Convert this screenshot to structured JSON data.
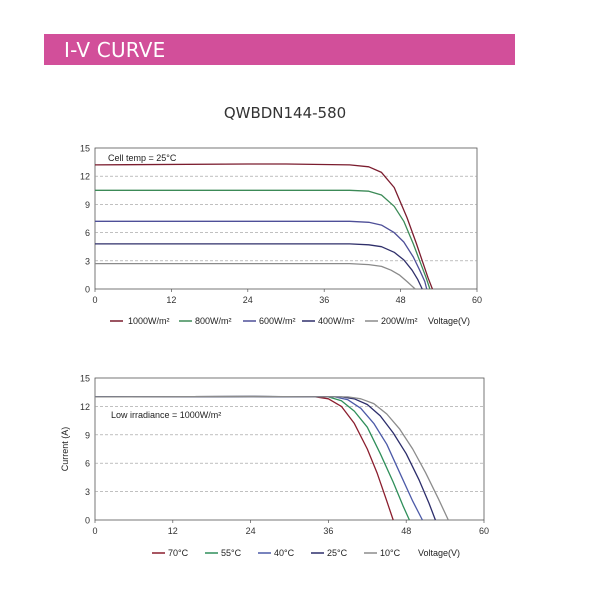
{
  "header": {
    "title": "I-V CURVE"
  },
  "model": "QWBDN144-580",
  "colors": {
    "banner": "#d24f9a",
    "irr_1000": "#7b1c2e",
    "irr_800": "#3c8a57",
    "irr_600": "#4e4f98",
    "irr_400": "#2f2f6a",
    "irr_200": "#8a8a8a",
    "t70": "#8b1e2e",
    "t55": "#2f8f5a",
    "t40": "#4c5aa8",
    "t25": "#2c2d6b",
    "t10": "#8c8c8c"
  },
  "chart_data": [
    {
      "type": "line",
      "annotation": "Cell temp = 25°C",
      "xlabel": "Voltage(V)",
      "ylabel": "",
      "xlim": [
        0,
        60
      ],
      "ylim": [
        0,
        15
      ],
      "x_ticks": [
        "0",
        "12",
        "24",
        "36",
        "48",
        "60"
      ],
      "y_ticks": [
        "0",
        "3",
        "6",
        "9",
        "12",
        "15"
      ],
      "grid": "horizontal dashed",
      "legend_position": "bottom",
      "series": [
        {
          "name": "1000W/m²",
          "color_key": "irr_1000",
          "x": [
            0,
            24,
            30,
            40,
            43,
            45,
            47,
            49,
            50.5,
            51.5,
            52.3,
            53.0
          ],
          "y": [
            13.2,
            13.3,
            13.3,
            13.2,
            13.0,
            12.4,
            10.8,
            7.6,
            4.8,
            2.8,
            1.2,
            0
          ]
        },
        {
          "name": "800W/m²",
          "color_key": "irr_800",
          "x": [
            0,
            20,
            40,
            43,
            45,
            47,
            48.5,
            50,
            51,
            52.0,
            52.6
          ],
          "y": [
            10.5,
            10.5,
            10.5,
            10.4,
            10.0,
            8.8,
            7.2,
            4.8,
            3.0,
            1.2,
            0
          ]
        },
        {
          "name": "600W/m²",
          "color_key": "irr_600",
          "x": [
            0,
            20,
            40,
            43,
            45,
            47,
            48.5,
            50,
            51,
            51.8,
            52.1
          ],
          "y": [
            7.2,
            7.2,
            7.2,
            7.1,
            6.8,
            6.0,
            5.0,
            3.4,
            2.0,
            0.8,
            0
          ]
        },
        {
          "name": "400W/m²",
          "color_key": "irr_400",
          "x": [
            0,
            20,
            40,
            43,
            45,
            47,
            48.5,
            49.8,
            50.7,
            51.4
          ],
          "y": [
            4.8,
            4.8,
            4.8,
            4.7,
            4.5,
            3.9,
            3.1,
            2.0,
            1.0,
            0
          ]
        },
        {
          "name": "200W/m²",
          "color_key": "irr_200",
          "x": [
            0,
            20,
            40,
            43,
            45,
            46.5,
            47.8,
            49,
            49.8,
            50.3
          ],
          "y": [
            2.7,
            2.7,
            2.7,
            2.6,
            2.4,
            2.0,
            1.5,
            0.8,
            0.3,
            0
          ]
        }
      ]
    },
    {
      "type": "line",
      "annotation": "Low irradiance = 1000W/m²",
      "xlabel": "Voltage(V)",
      "ylabel": "Current (A)",
      "xlim": [
        0,
        60
      ],
      "ylim": [
        0,
        15
      ],
      "x_ticks": [
        "0",
        "12",
        "24",
        "36",
        "48",
        "60"
      ],
      "y_ticks": [
        "0",
        "3",
        "6",
        "9",
        "12",
        "15"
      ],
      "grid": "horizontal dashed",
      "legend_position": "bottom",
      "series": [
        {
          "name": "70°C",
          "color_key": "t70",
          "x": [
            0,
            24,
            34,
            36,
            38,
            40,
            42,
            43.5,
            45,
            46
          ],
          "y": [
            13.0,
            13.05,
            13.0,
            12.8,
            12.0,
            10.2,
            7.5,
            5.0,
            2.0,
            0
          ]
        },
        {
          "name": "55°C",
          "color_key": "t55",
          "x": [
            0,
            24,
            36,
            38,
            40,
            42,
            44,
            46,
            47.5,
            48.5
          ],
          "y": [
            13.0,
            13.05,
            13.0,
            12.6,
            11.5,
            9.8,
            7.0,
            4.0,
            1.5,
            0
          ]
        },
        {
          "name": "40°C",
          "color_key": "t40",
          "x": [
            0,
            24,
            37,
            39,
            41,
            43,
            45,
            47,
            49,
            50.5
          ],
          "y": [
            13.0,
            13.05,
            13.0,
            12.7,
            11.8,
            10.2,
            8.0,
            5.0,
            2.0,
            0
          ]
        },
        {
          "name": "25°C",
          "color_key": "t25",
          "x": [
            0,
            24,
            38,
            40,
            42,
            44,
            46,
            48,
            50,
            51.5,
            52.5
          ],
          "y": [
            13.0,
            13.05,
            13.0,
            12.8,
            12.2,
            11.0,
            9.2,
            7.0,
            4.2,
            1.8,
            0
          ]
        },
        {
          "name": "10°C",
          "color_key": "t10",
          "x": [
            0,
            24,
            39,
            41,
            43,
            45,
            47,
            49,
            51,
            53,
            54.5
          ],
          "y": [
            13.0,
            13.05,
            13.0,
            12.8,
            12.3,
            11.2,
            9.6,
            7.5,
            5.0,
            2.2,
            0
          ]
        }
      ]
    }
  ]
}
